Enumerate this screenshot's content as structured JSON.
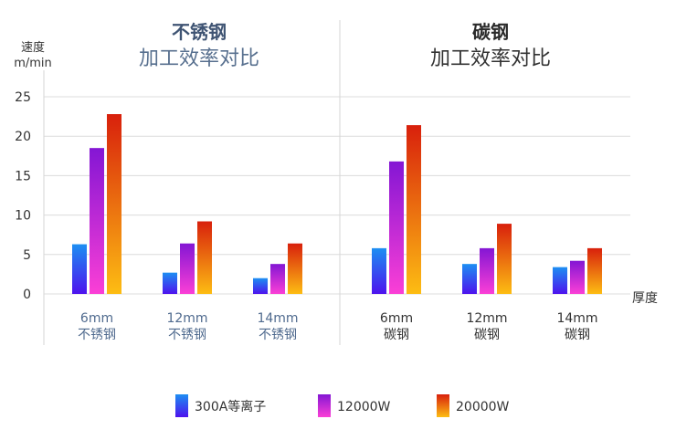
{
  "chart_data": {
    "type": "bar",
    "ylabel": "速度",
    "yunit": "m/min",
    "xlabel": "厚度",
    "ylim": [
      0,
      25
    ],
    "yticks": [
      0,
      5,
      10,
      15,
      20,
      25
    ],
    "grid": true,
    "legend_position": "bottom",
    "panels": [
      {
        "title": "不锈钢",
        "subtitle": "加工效率对比",
        "categories": [
          {
            "thickness": "6mm",
            "material": "不锈钢"
          },
          {
            "thickness": "12mm",
            "material": "不锈钢"
          },
          {
            "thickness": "14mm",
            "material": "不锈钢"
          }
        ]
      },
      {
        "title": "碳钢",
        "subtitle": "加工效率对比",
        "categories": [
          {
            "thickness": "6mm",
            "material": "碳钢"
          },
          {
            "thickness": "12mm",
            "material": "碳钢"
          },
          {
            "thickness": "14mm",
            "material": "碳钢"
          }
        ]
      }
    ],
    "series": [
      {
        "name": "300A等离子",
        "values": [
          6.3,
          2.7,
          2.0,
          5.8,
          3.8,
          3.4
        ],
        "colors": [
          "#1d8ff2",
          "#4d12ee"
        ]
      },
      {
        "name": "12000W",
        "values": [
          18.5,
          6.4,
          3.8,
          16.8,
          5.8,
          4.2
        ],
        "colors": [
          "#8416d4",
          "#fb3fd6"
        ]
      },
      {
        "name": "20000W",
        "values": [
          22.8,
          9.2,
          6.4,
          21.4,
          8.9,
          5.8
        ],
        "colors": [
          "#d8200c",
          "#fdbd13"
        ]
      }
    ]
  }
}
